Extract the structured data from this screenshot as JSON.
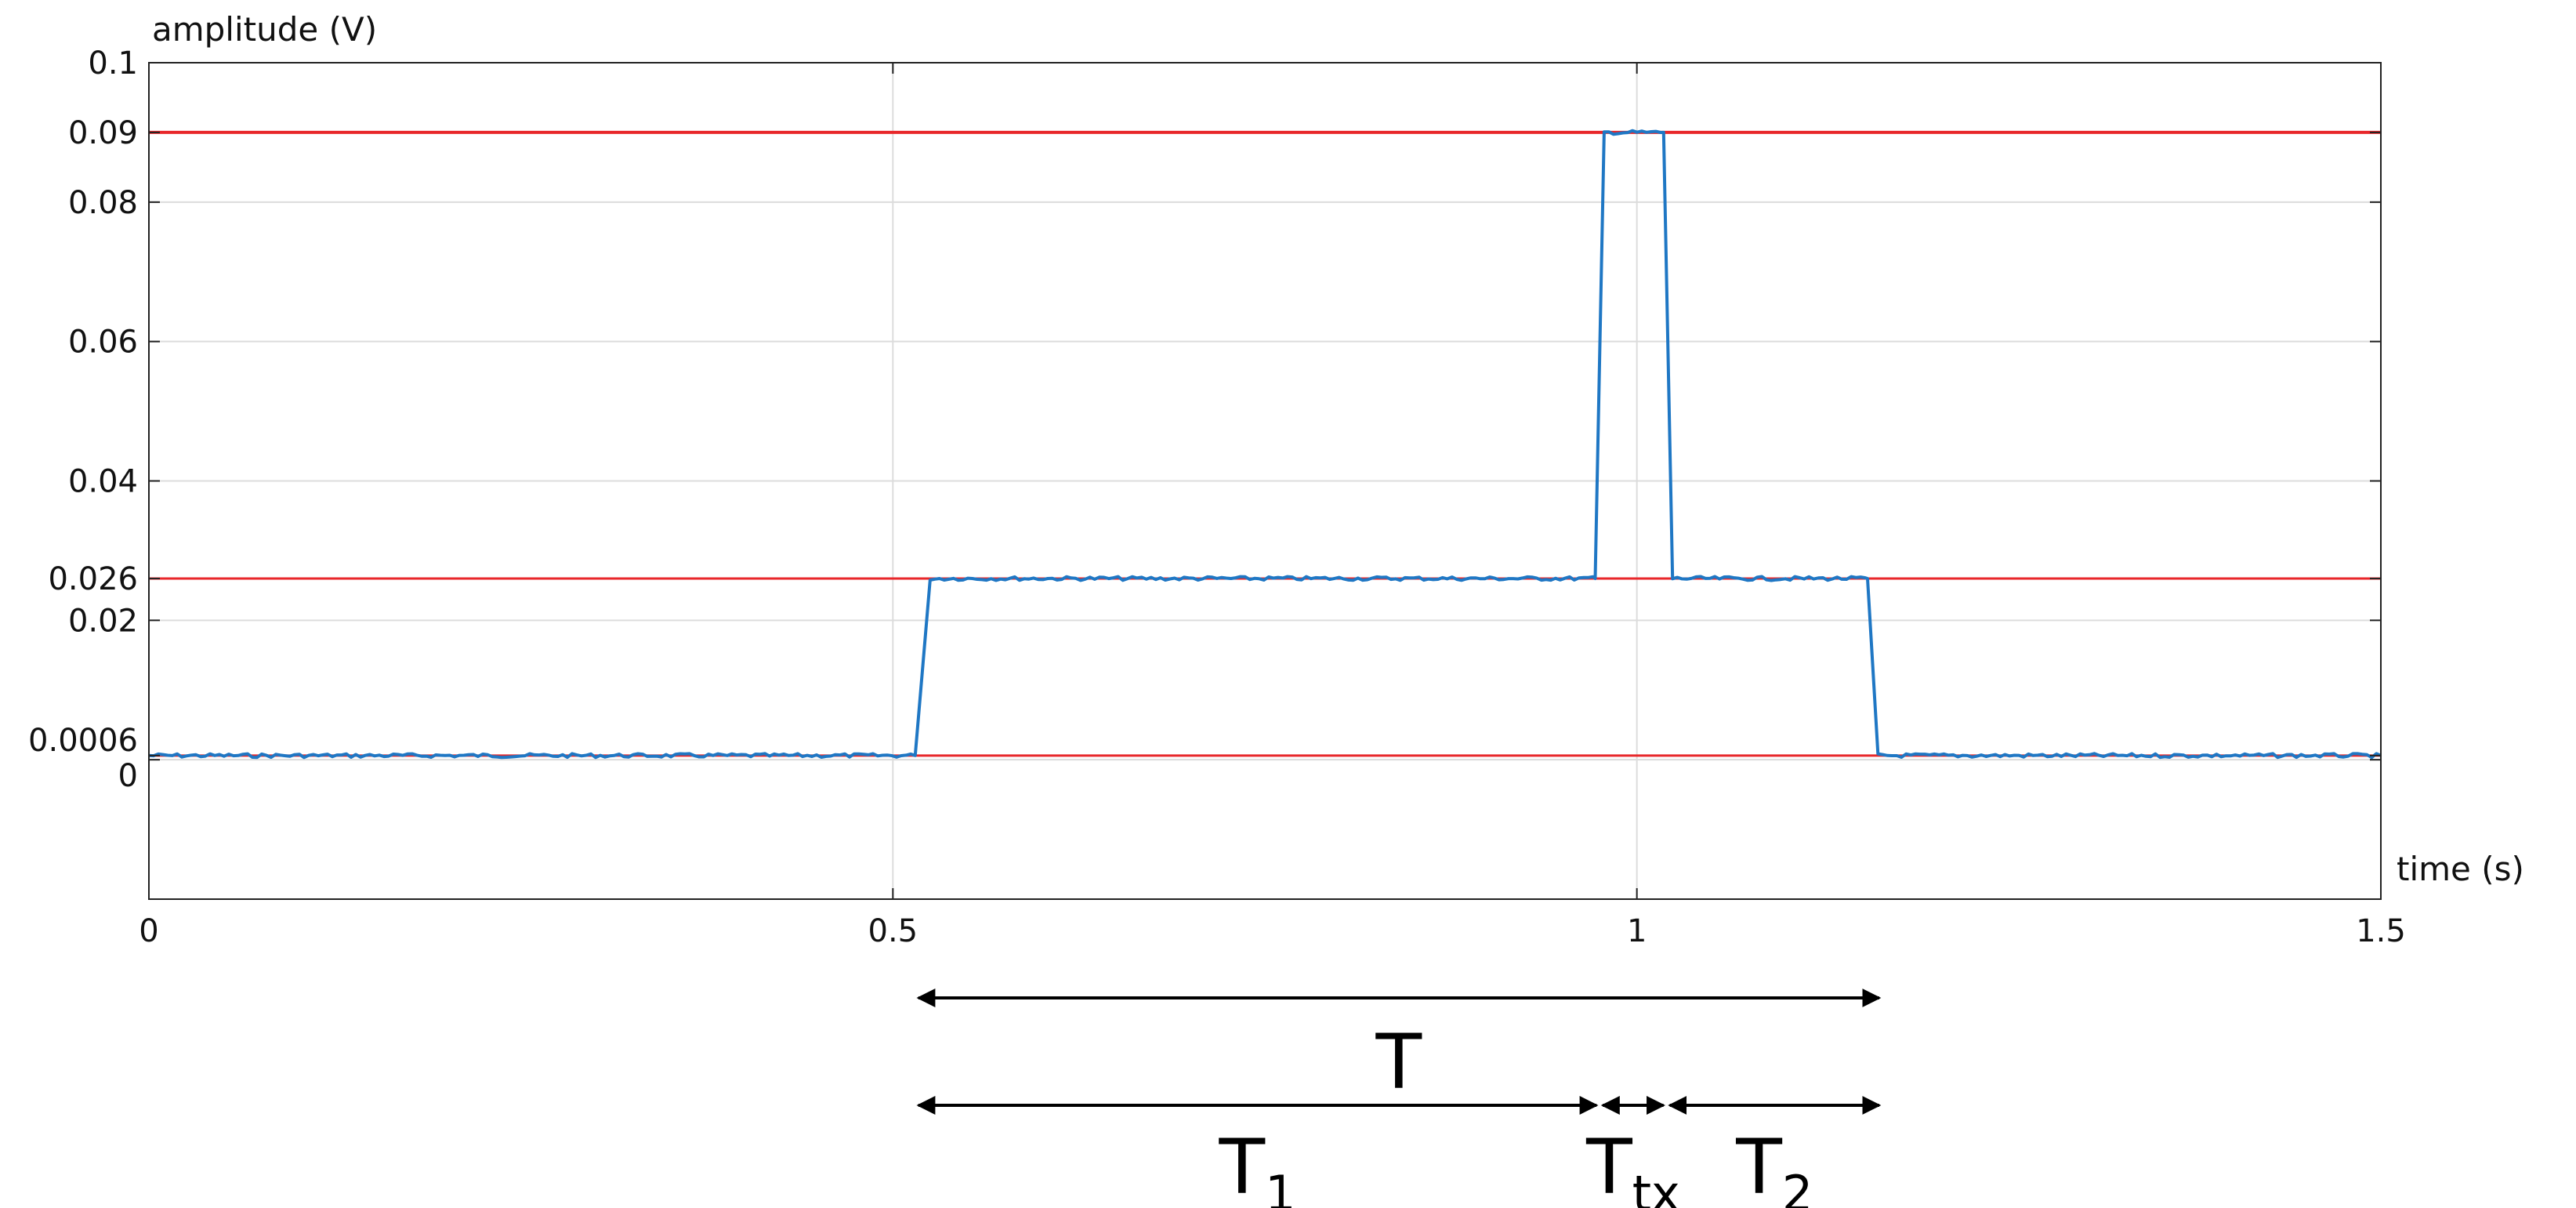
{
  "chart_data": {
    "type": "line",
    "title": "",
    "xlabel": "time (s)",
    "ylabel": "amplitude (V)",
    "xlim": [
      0,
      1.5
    ],
    "ylim": [
      -0.02,
      0.1
    ],
    "x_ticks": [
      0,
      0.5,
      1,
      1.5
    ],
    "x_tick_labels": [
      "0",
      "0.5",
      "1",
      "1.5"
    ],
    "y_ticks": [
      0,
      0.0006,
      0.02,
      0.026,
      0.04,
      0.06,
      0.08,
      0.09,
      0.1
    ],
    "y_tick_labels": [
      "0",
      "0.0006",
      "0.02",
      "0.026",
      "0.04",
      "0.06",
      "0.08",
      "0.09",
      "0.1"
    ],
    "grid": true,
    "series": [
      {
        "color": "#1f77c4",
        "x": [
          0,
          0.515,
          0.525,
          0.972,
          0.978,
          1.018,
          1.024,
          1.155,
          1.162,
          1.5
        ],
        "y": [
          0.0006,
          0.0006,
          0.026,
          0.026,
          0.09,
          0.09,
          0.026,
          0.026,
          0.0006,
          0.0006
        ]
      }
    ],
    "reference_lines": [
      {
        "y": 0.09,
        "color": "#e8272a"
      },
      {
        "y": 0.026,
        "color": "#e8272a"
      },
      {
        "y": 0.0006,
        "color": "#e8272a"
      }
    ],
    "intervals": [
      {
        "label": "T",
        "sub": "",
        "x_start": 0.515,
        "x_end": 1.165,
        "row": 0
      },
      {
        "label": "T",
        "sub": "1",
        "x_start": 0.515,
        "x_end": 0.975,
        "row": 1
      },
      {
        "label": "T",
        "sub": "tx",
        "x_start": 0.975,
        "x_end": 1.02,
        "row": 1
      },
      {
        "label": "T",
        "sub": "2",
        "x_start": 1.02,
        "x_end": 1.165,
        "row": 1
      }
    ]
  }
}
